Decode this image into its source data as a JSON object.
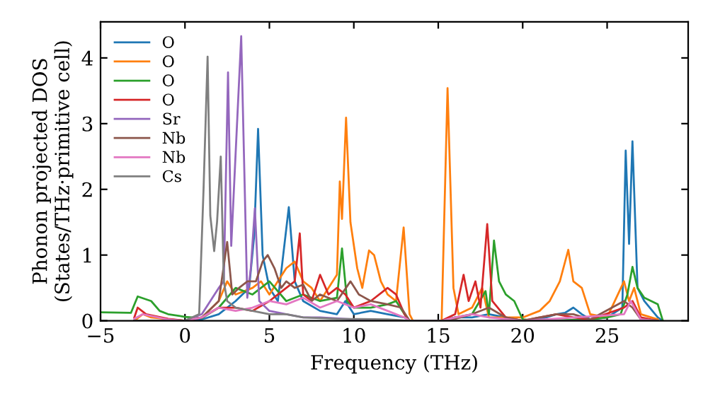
{
  "chart_data": {
    "type": "line",
    "xlabel": "Frequency (THz)",
    "ylabel": "Phonon projected DOS\n(States/THz·primitive cell)",
    "xlim": [
      -5,
      29.8
    ],
    "ylim": [
      0,
      4.55
    ],
    "xticks": [
      -5,
      0,
      5,
      10,
      15,
      20,
      25
    ],
    "yticks": [
      0,
      1,
      2,
      3,
      4
    ],
    "grid": false,
    "legend": "top left",
    "marker": "none",
    "line_style": "solid",
    "series": [
      {
        "name": "O",
        "color": "#1f77b4",
        "x": [
          -3,
          0,
          1,
          2,
          3,
          3.8,
          4.1,
          4.33,
          4.6,
          5,
          5.5,
          6.15,
          6.5,
          7,
          8,
          9,
          9.5,
          10,
          11,
          12,
          13,
          13.3,
          15.2,
          16,
          17,
          18,
          19,
          20,
          21,
          22,
          22.5,
          23,
          23.5,
          24,
          25,
          25.9,
          26.1,
          26.3,
          26.5,
          26.8,
          27.2,
          28,
          28.3
        ],
        "values": [
          0,
          0,
          0.02,
          0.1,
          0.3,
          0.5,
          1.3,
          2.92,
          1.0,
          0.5,
          0.3,
          1.73,
          0.6,
          0.3,
          0.15,
          0.1,
          0.3,
          0.1,
          0.15,
          0.1,
          0.05,
          0,
          0,
          0.05,
          0.05,
          0.1,
          0.05,
          0,
          0.02,
          0.1,
          0.12,
          0.2,
          0.1,
          0.02,
          0.05,
          0.2,
          2.59,
          1.17,
          2.73,
          0.5,
          0.3,
          0.05,
          0
        ]
      },
      {
        "name": "O",
        "color": "#ff7f0e",
        "x": [
          -3,
          -2.5,
          -2,
          0,
          1,
          2,
          2.5,
          3,
          4,
          4.5,
          5,
          5.5,
          6,
          6.5,
          7,
          7.5,
          8,
          8.5,
          9,
          9.17,
          9.3,
          9.54,
          9.8,
          10.2,
          10.5,
          10.9,
          11.2,
          11.6,
          12,
          12.5,
          12.95,
          13.3,
          13.5,
          15.2,
          15.55,
          15.9,
          16.2,
          17,
          17.6,
          18,
          19,
          20,
          21,
          21.6,
          22.2,
          22.7,
          23,
          23.5,
          24,
          25,
          26,
          26.3,
          26.6,
          27,
          28
        ],
        "values": [
          0,
          0.1,
          0.05,
          0,
          0.05,
          0.3,
          0.6,
          0.4,
          0.5,
          0.6,
          0.4,
          0.6,
          0.8,
          0.9,
          0.6,
          0.5,
          0.3,
          0.5,
          0.7,
          2.12,
          1.55,
          3.09,
          1.5,
          0.8,
          0.5,
          1.07,
          1.0,
          0.6,
          0.4,
          0.3,
          1.42,
          0.1,
          0,
          0,
          3.54,
          0.5,
          0.1,
          0.2,
          0.5,
          0.05,
          0.05,
          0.05,
          0.15,
          0.3,
          0.6,
          1.08,
          0.6,
          0.5,
          0.1,
          0.05,
          0.6,
          0.3,
          0.5,
          0.1,
          0.02
        ]
      },
      {
        "name": "O",
        "color": "#2ca02c",
        "x": [
          -5,
          -3.2,
          -2.8,
          -2,
          -1.5,
          -1,
          0,
          1,
          2,
          3,
          4,
          5,
          6,
          7,
          8,
          9,
          9.3,
          9.6,
          10,
          11,
          12,
          12.5,
          13,
          13.3,
          15.2,
          16,
          17,
          17.8,
          18,
          18.3,
          18.6,
          19,
          19.5,
          20,
          21,
          24,
          25,
          25.8,
          26.2,
          26.5,
          26.8,
          27.2,
          28,
          28.3
        ],
        "values": [
          0.13,
          0.12,
          0.37,
          0.3,
          0.15,
          0.1,
          0.06,
          0.04,
          0.2,
          0.5,
          0.4,
          0.6,
          0.3,
          0.4,
          0.3,
          0.35,
          1.1,
          0.3,
          0.2,
          0.2,
          0.25,
          0.3,
          0.1,
          0,
          0,
          0.05,
          0.1,
          0.45,
          0.1,
          1.22,
          0.6,
          0.4,
          0.3,
          0.02,
          0,
          0.02,
          0.05,
          0.1,
          0.4,
          0.82,
          0.5,
          0.35,
          0.25,
          0
        ]
      },
      {
        "name": "O",
        "color": "#d62728",
        "x": [
          -3,
          -2.8,
          -2.3,
          -1,
          0,
          1,
          2,
          3,
          4,
          5,
          6,
          6.5,
          6.8,
          7,
          7.5,
          8,
          8.5,
          9,
          9.5,
          10,
          11,
          12,
          12.5,
          13,
          13.3,
          15.2,
          16,
          16.5,
          16.8,
          17.2,
          17.5,
          17.9,
          18.2,
          19,
          20,
          21,
          22,
          23,
          24,
          26,
          26.5,
          27,
          28
        ],
        "values": [
          0.05,
          0.2,
          0.1,
          0.03,
          0,
          0.05,
          0.2,
          0.2,
          0.15,
          0.3,
          0.5,
          0.6,
          1.33,
          0.4,
          0.3,
          0.7,
          0.4,
          0.5,
          0.4,
          0.2,
          0.3,
          0.5,
          0.4,
          0.1,
          0,
          0,
          0.1,
          0.7,
          0.3,
          0.6,
          0.2,
          1.47,
          0.3,
          0.05,
          0,
          0.05,
          0.1,
          0.05,
          0.02,
          0.2,
          0.3,
          0.05,
          0
        ]
      },
      {
        "name": "Sr",
        "color": "#9467bd",
        "x": [
          -3,
          0,
          1,
          1.5,
          2,
          2.3,
          2.55,
          2.74,
          3.33,
          3.69,
          3.9,
          4.14,
          4.4,
          5,
          6,
          7,
          8,
          10,
          12,
          13.3,
          28
        ],
        "values": [
          0,
          0,
          0.1,
          0.3,
          0.5,
          0.6,
          3.78,
          1.14,
          4.33,
          0.35,
          0.8,
          1.71,
          0.3,
          0.15,
          0.1,
          0.05,
          0.05,
          0.02,
          0.01,
          0,
          0
        ]
      },
      {
        "name": "Nb",
        "color": "#8c564b",
        "x": [
          -3,
          0,
          1,
          2,
          2.5,
          2.8,
          3.2,
          3.7,
          4.2,
          4.6,
          4.9,
          5.3,
          5.7,
          6,
          6.5,
          7,
          7.5,
          8,
          9,
          9.8,
          10.3,
          11,
          12,
          12.8,
          13.3,
          15.2,
          16,
          17,
          18,
          19,
          20,
          21,
          22,
          23,
          24,
          26,
          26.5,
          27,
          28
        ],
        "values": [
          0,
          0,
          0.05,
          0.3,
          1.2,
          0.4,
          0.5,
          0.6,
          0.6,
          0.9,
          1.0,
          0.8,
          0.5,
          0.6,
          0.5,
          0.55,
          0.3,
          0.4,
          0.3,
          0.6,
          0.4,
          0.3,
          0.25,
          0.2,
          0,
          0,
          0.03,
          0.1,
          0.2,
          0.05,
          0,
          0.05,
          0.1,
          0.1,
          0.02,
          0.3,
          0.2,
          0.02,
          0
        ]
      },
      {
        "name": "Nb",
        "color": "#e377c2",
        "x": [
          -3,
          -2.5,
          -1,
          0,
          1,
          2,
          3,
          4,
          5,
          6,
          7,
          8,
          9,
          10,
          11,
          12,
          13,
          13.3,
          15.2,
          16,
          17,
          18,
          20,
          26,
          26.4,
          27,
          28
        ],
        "values": [
          0.03,
          0.1,
          0.02,
          0,
          0.05,
          0.2,
          0.15,
          0.2,
          0.3,
          0.25,
          0.35,
          0.2,
          0.3,
          0.2,
          0.25,
          0.15,
          0.05,
          0,
          0,
          0.05,
          0.1,
          0.05,
          0,
          0.1,
          0.3,
          0.02,
          0
        ]
      },
      {
        "name": "Cs",
        "color": "#7f7f7f",
        "x": [
          -3,
          0,
          0.84,
          1.1,
          1.34,
          1.5,
          1.73,
          1.9,
          2.12,
          2.3,
          2.5,
          3,
          4,
          5,
          6,
          7,
          9,
          12,
          13.3,
          28
        ],
        "values": [
          0,
          0,
          0.1,
          2.0,
          4.02,
          1.6,
          1.06,
          1.5,
          2.5,
          0.6,
          0.3,
          0.2,
          0.15,
          0.1,
          0.1,
          0.05,
          0.03,
          0.02,
          0,
          0
        ]
      }
    ]
  }
}
